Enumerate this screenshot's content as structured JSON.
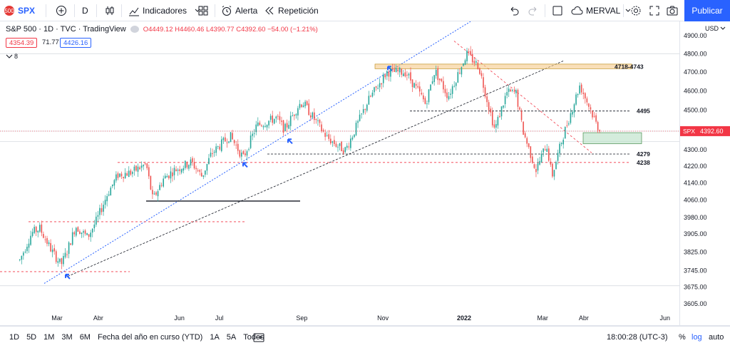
{
  "toolbar": {
    "symbol": "SPX",
    "interval": "D",
    "indicators_label": "Indicadores",
    "alert_label": "Alerta",
    "replay_label": "Repetición",
    "layout_name": "MERVAL",
    "publish_label": "Publicar"
  },
  "legend": {
    "title": "S&P 500 · 1D · TVC · TradingView",
    "open": "O4449.12",
    "high": "H4460.46",
    "low": "L4390.77",
    "close": "C4392.60",
    "change": "−54.00 (−1.21%)",
    "bid": "4354.39",
    "spread": "71.77",
    "ask": "4426.16",
    "indicator_count": "8"
  },
  "price_axis": {
    "currency": "USD",
    "ticks": [
      "4900.00",
      "4800.00",
      "4700.00",
      "4600.00",
      "4500.00",
      "4400.00",
      "4300.00",
      "4220.00",
      "4140.00",
      "4060.00",
      "3980.00",
      "3905.00",
      "3825.00",
      "3745.00",
      "3675.00",
      "3605.00"
    ],
    "last_label": "SPX",
    "last_price": "4392.60"
  },
  "time_axis": {
    "ticks": [
      "Mar",
      "Abr",
      "Jun",
      "Jul",
      "Sep",
      "Nov",
      "2022",
      "Mar",
      "Abr",
      "Jun"
    ]
  },
  "annotations": {
    "zone_top": "4718-4743",
    "l4495": "4495",
    "l4279": "4279",
    "l4238": "4238"
  },
  "bottom": {
    "ranges": [
      "1D",
      "5D",
      "1M",
      "3M",
      "6M",
      "Fecha del año en curso (YTD)",
      "1A",
      "5A",
      "Todos"
    ],
    "clock": "18:00:28 (UTC-3)",
    "percent": "%",
    "log": "log",
    "auto": "auto"
  },
  "colors": {
    "up": "#26a69a",
    "down": "#ef5350",
    "accent": "#2962ff",
    "zone": "#f5c98b",
    "target": "#b7dfc4"
  },
  "chart_data": {
    "type": "candlestick",
    "title": "S&P 500 · 1D · TVC",
    "y_scale": "log",
    "ylim": [
      3600,
      4950
    ],
    "x_range": [
      "2021-02",
      "2022-06"
    ],
    "series": [
      {
        "values": [
          [
            "2021-02-01",
            3790
          ],
          [
            "2021-02-10",
            3910
          ],
          [
            "2021-02-16",
            3930
          ],
          [
            "2021-02-25",
            3830
          ],
          [
            "2021-03-04",
            3770
          ],
          [
            "2021-03-08",
            3820
          ],
          [
            "2021-03-15",
            3940
          ],
          [
            "2021-03-24",
            3890
          ],
          [
            "2021-03-31",
            3970
          ],
          [
            "2021-04-08",
            4090
          ],
          [
            "2021-04-16",
            4180
          ],
          [
            "2021-04-26",
            4190
          ],
          [
            "2021-05-07",
            4230
          ],
          [
            "2021-05-12",
            4060
          ],
          [
            "2021-05-20",
            4160
          ],
          [
            "2021-05-28",
            4200
          ],
          [
            "2021-06-10",
            4240
          ],
          [
            "2021-06-18",
            4170
          ],
          [
            "2021-06-25",
            4280
          ],
          [
            "2021-07-09",
            4370
          ],
          [
            "2021-07-19",
            4260
          ],
          [
            "2021-07-29",
            4420
          ],
          [
            "2021-08-13",
            4460
          ],
          [
            "2021-08-19",
            4400
          ],
          [
            "2021-08-30",
            4530
          ],
          [
            "2021-09-02",
            4537
          ],
          [
            "2021-09-20",
            4360
          ],
          [
            "2021-09-30",
            4310
          ],
          [
            "2021-10-04",
            4300
          ],
          [
            "2021-10-21",
            4550
          ],
          [
            "2021-11-04",
            4700
          ],
          [
            "2021-11-18",
            4700
          ],
          [
            "2021-11-30",
            4570
          ],
          [
            "2021-12-03",
            4530
          ],
          [
            "2021-12-10",
            4710
          ],
          [
            "2021-12-20",
            4570
          ],
          [
            "2022-01-03",
            4800
          ],
          [
            "2022-01-12",
            4730
          ],
          [
            "2022-01-24",
            4400
          ],
          [
            "2022-02-02",
            4590
          ],
          [
            "2022-02-09",
            4590
          ],
          [
            "2022-02-14",
            4400
          ],
          [
            "2022-02-24",
            4200
          ],
          [
            "2022-03-04",
            4330
          ],
          [
            "2022-03-08",
            4170
          ],
          [
            "2022-03-16",
            4360
          ],
          [
            "2022-03-29",
            4630
          ],
          [
            "2022-04-05",
            4520
          ],
          [
            "2022-04-11",
            4420
          ],
          [
            "2022-04-14",
            4392.6
          ]
        ]
      }
    ]
  }
}
